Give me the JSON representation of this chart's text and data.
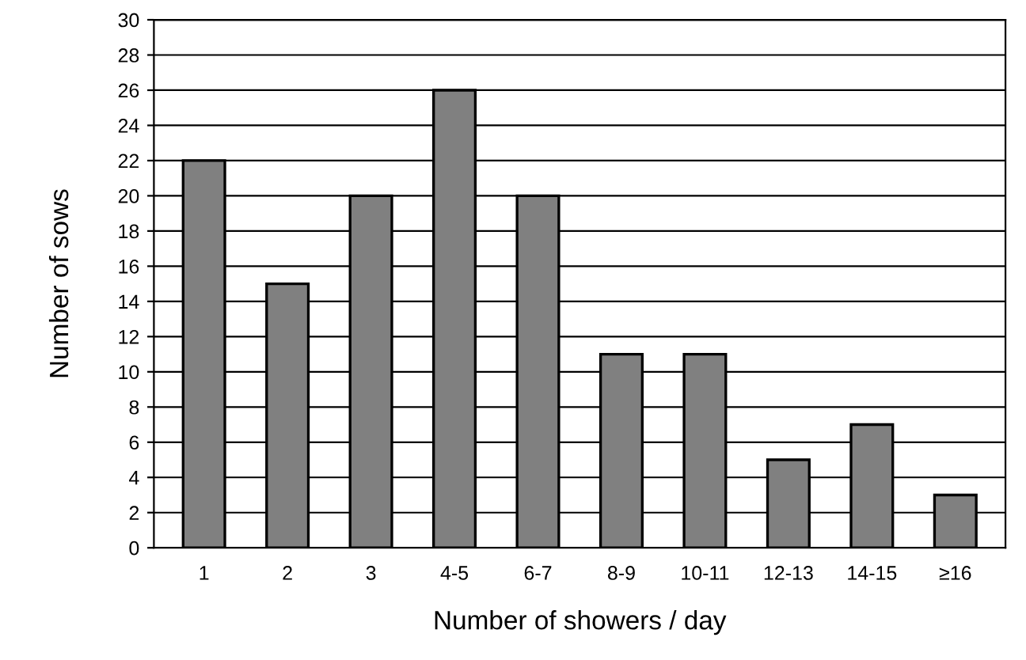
{
  "chart_data": {
    "type": "bar",
    "xlabel": "Number of showers / day",
    "ylabel": "Number of sows",
    "categories": [
      "1",
      "2",
      "3",
      "4-5",
      "6-7",
      "8-9",
      "10-11",
      "12-13",
      "14-15",
      "≥16"
    ],
    "values": [
      22,
      15,
      20,
      26,
      20,
      11,
      11,
      5,
      7,
      3
    ],
    "color": "#808080",
    "ylim": [
      0,
      30
    ],
    "yticks": [
      0,
      2,
      4,
      6,
      8,
      10,
      12,
      14,
      16,
      18,
      20,
      22,
      24,
      26,
      28,
      30
    ],
    "grid": "y"
  }
}
